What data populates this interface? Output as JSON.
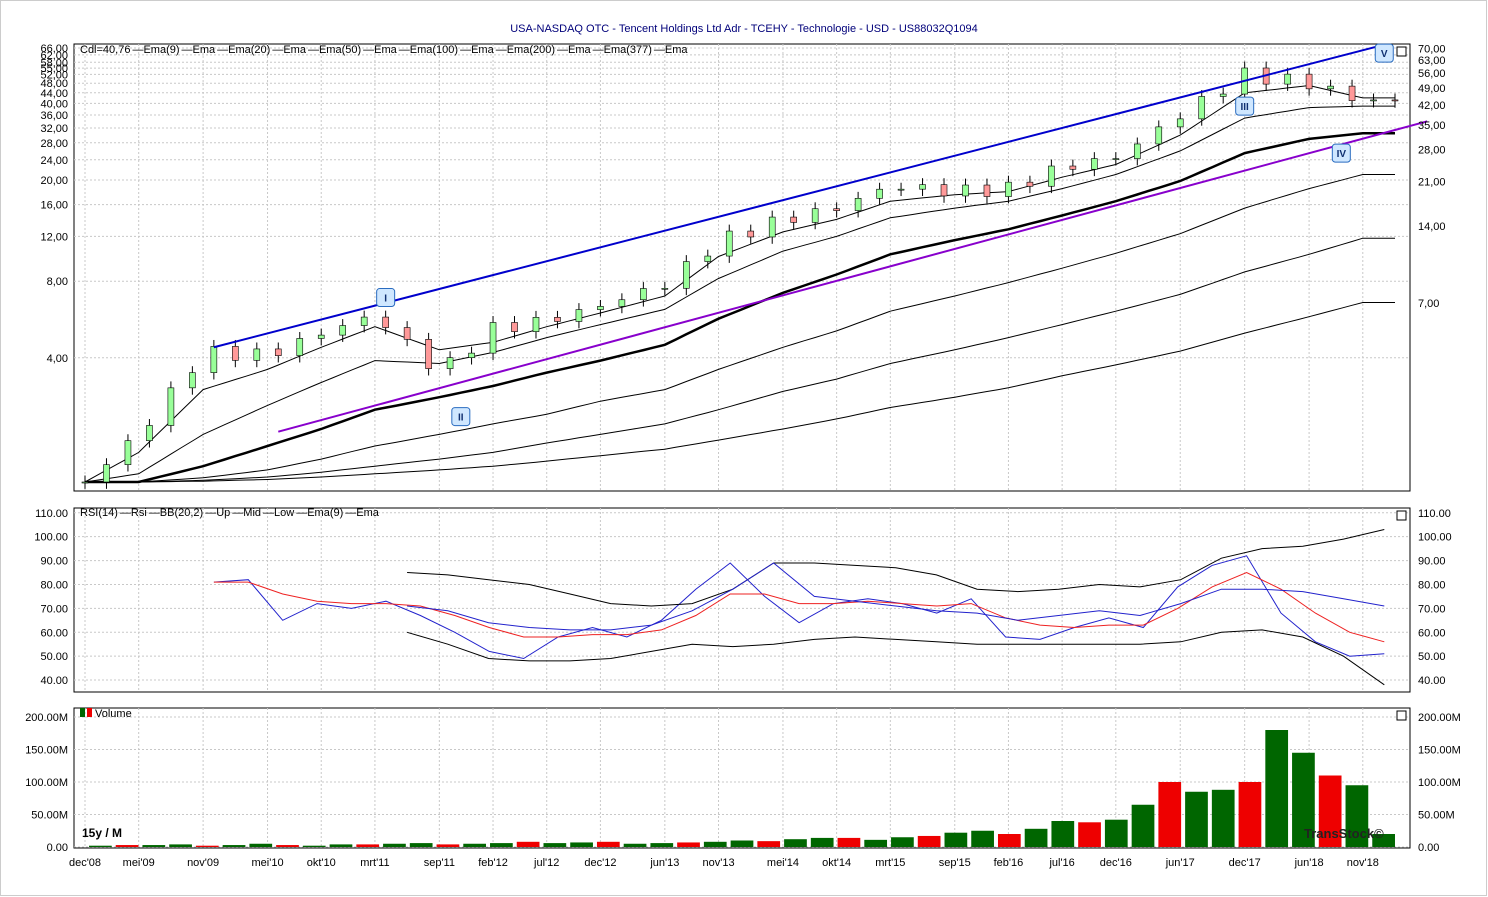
{
  "header": {
    "title": "USA-NASDAQ OTC - Tencent Holdings Ltd Adr - TCEHY - Technologie - USD - US88032Q1094"
  },
  "price_panel": {
    "legend": [
      "Cdl=40,76",
      "Ema(9)",
      "Ema",
      "Ema(20)",
      "Ema",
      "Ema(50)",
      "Ema",
      "Ema(100)",
      "Ema",
      "Ema(200)",
      "Ema",
      "Ema(377)",
      "Ema"
    ],
    "left_ticks": [
      "66,00",
      "62,00",
      "58,00",
      "55,00",
      "52,00",
      "48,00",
      "44,00",
      "40,00",
      "36,00",
      "32,00",
      "28,00",
      "24,00",
      "20,00",
      "16,00",
      "12,00",
      "8,00",
      "4,00"
    ],
    "right_ticks": [
      "70,00",
      "63,00",
      "56,00",
      "49,00",
      "42,00",
      "35,00",
      "28,00",
      "21,00",
      "14,00",
      "7,00"
    ],
    "wave_labels": [
      "I",
      "II",
      "III",
      "IV",
      "V"
    ]
  },
  "rsi_panel": {
    "legend": [
      "RSI(14)",
      "Rsi",
      "BB(20,2)",
      "Up",
      "Mid",
      "Low",
      "Ema(9)",
      "Ema"
    ],
    "ticks": [
      "110.00",
      "100.00",
      "90.00",
      "80.00",
      "70.00",
      "60.00",
      "50.00",
      "40.00"
    ]
  },
  "volume_panel": {
    "legend": "Volume",
    "ticks": [
      "200.00M",
      "150.00M",
      "100.00M",
      "50.00M",
      "0.00"
    ],
    "period_label": "15y / M",
    "watermark": "TransStock©"
  },
  "x_axis": {
    "labels": [
      "dec'08",
      "mei'09",
      "nov'09",
      "mei'10",
      "okt'10",
      "mrt'11",
      "sep'11",
      "feb'12",
      "jul'12",
      "dec'12",
      "jun'13",
      "nov'13",
      "mei'14",
      "okt'14",
      "mrt'15",
      "sep'15",
      "feb'16",
      "jul'16",
      "dec'16",
      "jun'17",
      "dec'17",
      "jun'18",
      "nov'18"
    ]
  },
  "colors": {
    "up": "#22cc22",
    "down": "#ee2222",
    "vol_up": "#006600",
    "vol_down": "#ee0000",
    "trend_blue": "#0000cc",
    "trend_purple": "#8800cc",
    "rsi": "#2222cc",
    "rsi_ema": "#ee2222"
  },
  "chart_data": [
    {
      "type": "candlestick",
      "title": "USA-NASDAQ OTC - Tencent Holdings Ltd Adr - TCEHY - Technologie - USD - US88032Q1094",
      "scale": "log",
      "last_close": 40.76,
      "x": [
        "dec'08",
        "mei'09",
        "nov'09",
        "mei'10",
        "okt'10",
        "mrt'11",
        "sep'11",
        "feb'12",
        "jul'12",
        "dec'12",
        "jun'13",
        "nov'13",
        "mei'14",
        "okt'14",
        "mrt'15",
        "sep'15",
        "feb'16",
        "jul'16",
        "dec'16",
        "jun'17",
        "dec'17",
        "jun'18",
        "nov'18"
      ],
      "close_approx": [
        1.3,
        2.0,
        4.2,
        4.1,
        5.0,
        5.9,
        3.5,
        5.2,
        5.6,
        6.4,
        7.8,
        11.5,
        14.0,
        15.5,
        19.0,
        18.0,
        18.5,
        22.5,
        24.5,
        36.0,
        52.0,
        48.0,
        40.76
      ],
      "series": [
        {
          "name": "Ema(9)",
          "values": [
            1.3,
            1.7,
            3.0,
            3.6,
            4.4,
            5.3,
            4.3,
            4.6,
            5.3,
            6.0,
            7.0,
            10.0,
            12.5,
            14.0,
            16.5,
            17.5,
            18.0,
            20.5,
            23.0,
            30.0,
            44.0,
            47.0,
            42.0
          ]
        },
        {
          "name": "Ema(20)",
          "values": [
            1.3,
            1.4,
            2.0,
            2.6,
            3.2,
            3.9,
            3.8,
            4.2,
            4.8,
            5.4,
            6.2,
            8.2,
            10.5,
            12.0,
            14.2,
            15.5,
            16.5,
            18.5,
            21.0,
            26.0,
            35.0,
            38.5,
            39.0
          ]
        },
        {
          "name": "Ema(50)",
          "values": [
            1.3,
            1.3,
            1.5,
            1.8,
            2.1,
            2.5,
            2.8,
            3.1,
            3.5,
            3.9,
            4.5,
            5.7,
            7.2,
            8.5,
            10.2,
            11.6,
            12.8,
            14.5,
            16.5,
            19.8,
            25.5,
            29.0,
            30.5
          ]
        },
        {
          "name": "Ema(100)",
          "values": [
            1.3,
            1.3,
            1.35,
            1.45,
            1.6,
            1.8,
            2.0,
            2.2,
            2.4,
            2.7,
            3.0,
            3.6,
            4.4,
            5.1,
            6.1,
            7.0,
            7.9,
            9.0,
            10.3,
            12.3,
            15.5,
            18.5,
            21.0
          ]
        },
        {
          "name": "Ema(200)",
          "values": [
            1.3,
            1.3,
            1.32,
            1.36,
            1.42,
            1.5,
            1.6,
            1.7,
            1.85,
            2.0,
            2.2,
            2.5,
            2.95,
            3.3,
            3.8,
            4.3,
            4.8,
            5.4,
            6.1,
            7.1,
            8.7,
            10.2,
            11.8
          ]
        },
        {
          "name": "Ema(377)",
          "values": [
            1.3,
            1.3,
            1.31,
            1.33,
            1.36,
            1.4,
            1.45,
            1.5,
            1.57,
            1.65,
            1.75,
            1.9,
            2.1,
            2.3,
            2.55,
            2.8,
            3.05,
            3.4,
            3.75,
            4.25,
            5.0,
            5.8,
            6.6
          ]
        }
      ]
    },
    {
      "type": "line",
      "ylim": [
        35,
        112
      ],
      "series": [
        {
          "name": "Rsi",
          "values": [
            81,
            82,
            65,
            72,
            70,
            73,
            67,
            60,
            52,
            49,
            58,
            62,
            58,
            65,
            78,
            89,
            75,
            64,
            72,
            74,
            72,
            68,
            74,
            58,
            57,
            62,
            66,
            62,
            79,
            88,
            92,
            68,
            56,
            50,
            51
          ]
        },
        {
          "name": "Ema",
          "values": [
            81,
            81,
            76,
            73,
            72,
            72,
            71,
            67,
            62,
            58,
            58,
            59,
            59,
            61,
            67,
            76,
            76,
            72,
            72,
            73,
            72,
            71,
            72,
            66,
            63,
            62,
            63,
            63,
            70,
            79,
            85,
            78,
            68,
            60,
            56
          ]
        },
        {
          "name": "Up",
          "values": [
            85,
            84,
            82,
            80,
            76,
            72,
            71,
            72,
            78,
            89,
            89,
            88,
            87,
            84,
            78,
            77,
            78,
            80,
            79,
            82,
            91,
            95,
            96,
            99,
            103
          ]
        },
        {
          "name": "Mid",
          "values": [
            71,
            69,
            64,
            62,
            61,
            61,
            63,
            69,
            78,
            89,
            75,
            73,
            71,
            69,
            68,
            65,
            67,
            69,
            67,
            72,
            78,
            78,
            77,
            74,
            71
          ]
        },
        {
          "name": "Low",
          "values": [
            60,
            55,
            49,
            48,
            48,
            49,
            52,
            55,
            54,
            55,
            57,
            58,
            57,
            56,
            55,
            55,
            55,
            55,
            55,
            56,
            60,
            61,
            58,
            50,
            38
          ]
        }
      ]
    },
    {
      "type": "bar",
      "ylim": [
        0,
        200
      ],
      "unit": "M",
      "values": [
        2,
        3,
        3,
        4,
        2,
        3,
        5,
        3,
        2,
        4,
        4,
        5,
        6,
        4,
        5,
        6,
        8,
        6,
        7,
        8,
        5,
        6,
        7,
        8,
        10,
        9,
        12,
        14,
        14,
        11,
        15,
        17,
        22,
        25,
        20,
        28,
        40,
        38,
        42,
        65,
        100,
        85,
        88,
        100,
        180,
        145,
        110,
        95,
        20
      ]
    }
  ]
}
